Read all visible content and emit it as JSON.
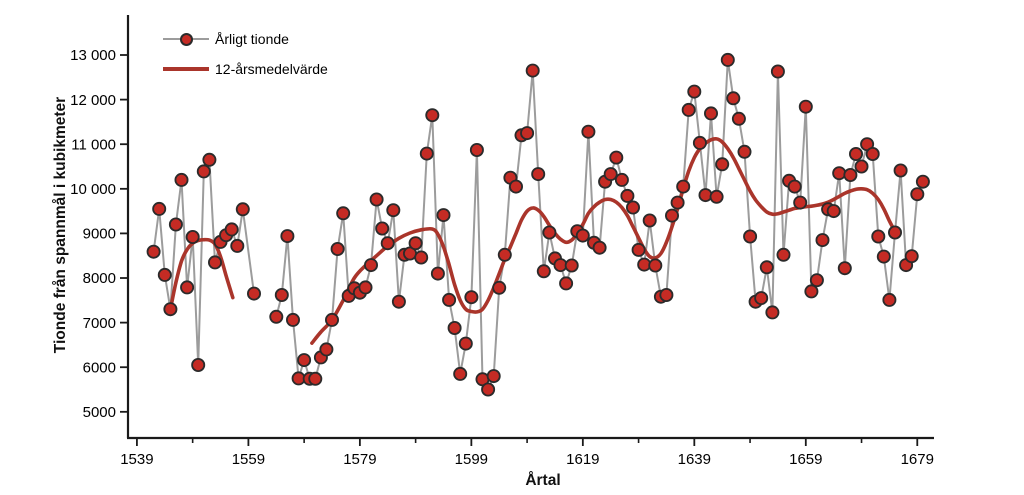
{
  "chart_data": {
    "type": "line",
    "title": "",
    "xlabel": "Årtal",
    "ylabel": "Tionde från spannmål i kubikmeter",
    "legend_position": "top-left-inside",
    "grid": false,
    "xlim": [
      1537.4,
      1682.0
    ],
    "ylim": [
      4413,
      13897
    ],
    "x_major_ticks": [
      {
        "v": 1539,
        "label": "1539"
      },
      {
        "v": 1559,
        "label": "1559"
      },
      {
        "v": 1579,
        "label": "1579"
      },
      {
        "v": 1599,
        "label": "1599"
      },
      {
        "v": 1619,
        "label": "1619"
      },
      {
        "v": 1639,
        "label": "1639"
      },
      {
        "v": 1659,
        "label": "1659"
      },
      {
        "v": 1679,
        "label": "1679"
      }
    ],
    "x_minor_ticks": [
      1549,
      1569,
      1589,
      1609,
      1629,
      1649,
      1669
    ],
    "y_ticks": [
      {
        "v": 5000,
        "label": "5000"
      },
      {
        "v": 6000,
        "label": "6000"
      },
      {
        "v": 7000,
        "label": "7000"
      },
      {
        "v": 8000,
        "label": "8000"
      },
      {
        "v": 9000,
        "label": "9000"
      },
      {
        "v": 10000,
        "label": "10 000"
      },
      {
        "v": 11000,
        "label": "11 000"
      },
      {
        "v": 12000,
        "label": "12 000"
      },
      {
        "v": 13000,
        "label": "13 000"
      }
    ],
    "series": [
      {
        "name": "Årligt tionde",
        "type": "scatter-line",
        "marker": "circle",
        "points": [
          [
            1542,
            8590
          ],
          [
            1543,
            9550
          ],
          [
            1544,
            8070
          ],
          [
            1545,
            7300
          ],
          [
            1546,
            9200
          ],
          [
            1547,
            10200
          ],
          [
            1548,
            7790
          ],
          [
            1549,
            8920
          ],
          [
            1550,
            6050
          ],
          [
            1551,
            10390
          ],
          [
            1552,
            10650
          ],
          [
            1553,
            8350
          ],
          [
            1554,
            8810
          ],
          [
            1555,
            8960
          ],
          [
            1556,
            9090
          ],
          [
            1557,
            8720
          ],
          [
            1558,
            9540
          ],
          [
            1560,
            7650
          ],
          [
            1564,
            7130
          ],
          [
            1565,
            7620
          ],
          [
            1566,
            8940
          ],
          [
            1567,
            7060
          ],
          [
            1568,
            5750
          ],
          [
            1569,
            6160
          ],
          [
            1570,
            5740
          ],
          [
            1571,
            5740
          ],
          [
            1572,
            6220
          ],
          [
            1573,
            6400
          ],
          [
            1574,
            7060
          ],
          [
            1575,
            8650
          ],
          [
            1576,
            9450
          ],
          [
            1577,
            7600
          ],
          [
            1578,
            7770
          ],
          [
            1579,
            7670
          ],
          [
            1580,
            7790
          ],
          [
            1581,
            8290
          ],
          [
            1582,
            9760
          ],
          [
            1583,
            9110
          ],
          [
            1584,
            8780
          ],
          [
            1585,
            9520
          ],
          [
            1586,
            7470
          ],
          [
            1587,
            8520
          ],
          [
            1588,
            8550
          ],
          [
            1589,
            8780
          ],
          [
            1590,
            8460
          ],
          [
            1591,
            10790
          ],
          [
            1592,
            11650
          ],
          [
            1593,
            8100
          ],
          [
            1594,
            9410
          ],
          [
            1595,
            7510
          ],
          [
            1596,
            6880
          ],
          [
            1597,
            5850
          ],
          [
            1598,
            6530
          ],
          [
            1599,
            7570
          ],
          [
            1600,
            10870
          ],
          [
            1601,
            5730
          ],
          [
            1602,
            5500
          ],
          [
            1603,
            5800
          ],
          [
            1604,
            7780
          ],
          [
            1605,
            8520
          ],
          [
            1606,
            10250
          ],
          [
            1607,
            10050
          ],
          [
            1608,
            11200
          ],
          [
            1609,
            11250
          ],
          [
            1610,
            12650
          ],
          [
            1611,
            10330
          ],
          [
            1612,
            8150
          ],
          [
            1613,
            9020
          ],
          [
            1614,
            8440
          ],
          [
            1615,
            8290
          ],
          [
            1616,
            7880
          ],
          [
            1617,
            8280
          ],
          [
            1618,
            9050
          ],
          [
            1619,
            8950
          ],
          [
            1620,
            11280
          ],
          [
            1621,
            8790
          ],
          [
            1622,
            8680
          ],
          [
            1623,
            10160
          ],
          [
            1624,
            10330
          ],
          [
            1625,
            10700
          ],
          [
            1626,
            10200
          ],
          [
            1627,
            9840
          ],
          [
            1628,
            9580
          ],
          [
            1629,
            8630
          ],
          [
            1630,
            8300
          ],
          [
            1631,
            9290
          ],
          [
            1632,
            8280
          ],
          [
            1633,
            7580
          ],
          [
            1634,
            7620
          ],
          [
            1635,
            9400
          ],
          [
            1636,
            9690
          ],
          [
            1637,
            10050
          ],
          [
            1638,
            11770
          ],
          [
            1639,
            12180
          ],
          [
            1640,
            11030
          ],
          [
            1641,
            9860
          ],
          [
            1642,
            11690
          ],
          [
            1643,
            9820
          ],
          [
            1644,
            10550
          ],
          [
            1645,
            12890
          ],
          [
            1646,
            12030
          ],
          [
            1647,
            11570
          ],
          [
            1648,
            10830
          ],
          [
            1649,
            8930
          ],
          [
            1650,
            7470
          ],
          [
            1651,
            7550
          ],
          [
            1652,
            8240
          ],
          [
            1653,
            7230
          ],
          [
            1654,
            12630
          ],
          [
            1655,
            8520
          ],
          [
            1656,
            10180
          ],
          [
            1657,
            10050
          ],
          [
            1658,
            9690
          ],
          [
            1659,
            11840
          ],
          [
            1660,
            7700
          ],
          [
            1661,
            7950
          ],
          [
            1662,
            8850
          ],
          [
            1663,
            9540
          ],
          [
            1664,
            9500
          ],
          [
            1665,
            10350
          ],
          [
            1666,
            8220
          ],
          [
            1667,
            10310
          ],
          [
            1668,
            10780
          ],
          [
            1669,
            10500
          ],
          [
            1670,
            11000
          ],
          [
            1671,
            10780
          ],
          [
            1672,
            8930
          ],
          [
            1673,
            8480
          ],
          [
            1674,
            7510
          ],
          [
            1675,
            9020
          ],
          [
            1676,
            10410
          ],
          [
            1677,
            8290
          ],
          [
            1678,
            8490
          ],
          [
            1679,
            9880
          ],
          [
            1680,
            10160
          ]
        ]
      },
      {
        "name": "12-årsmedelvärde",
        "type": "smooth-line",
        "segments": [
          [
            [
              1545.2,
              7420
            ],
            [
              1546,
              7900
            ],
            [
              1547,
              8380
            ],
            [
              1548,
              8640
            ],
            [
              1549,
              8780
            ],
            [
              1550,
              8840
            ],
            [
              1551,
              8860
            ],
            [
              1552,
              8850
            ],
            [
              1553,
              8760
            ],
            [
              1554,
              8480
            ],
            [
              1555,
              8050
            ],
            [
              1556.2,
              7560
            ]
          ],
          [
            [
              1570.4,
              6540
            ],
            [
              1572,
              6790
            ],
            [
              1574,
              7060
            ],
            [
              1576,
              7500
            ],
            [
              1578,
              8000
            ],
            [
              1580,
              8280
            ],
            [
              1582,
              8500
            ],
            [
              1584,
              8720
            ],
            [
              1586,
              8890
            ],
            [
              1588,
              9010
            ],
            [
              1590,
              9080
            ],
            [
              1592,
              9100
            ],
            [
              1593,
              8980
            ],
            [
              1594,
              8700
            ],
            [
              1595,
              8300
            ],
            [
              1596,
              7850
            ],
            [
              1597,
              7500
            ],
            [
              1598,
              7300
            ],
            [
              1599,
              7250
            ],
            [
              1600,
              7240
            ],
            [
              1601,
              7300
            ],
            [
              1602,
              7500
            ],
            [
              1603,
              7780
            ],
            [
              1604,
              8100
            ],
            [
              1605,
              8420
            ],
            [
              1606,
              8700
            ],
            [
              1607,
              9000
            ],
            [
              1608,
              9300
            ],
            [
              1609,
              9500
            ],
            [
              1610,
              9570
            ],
            [
              1611,
              9520
            ],
            [
              1612,
              9380
            ],
            [
              1613,
              9180
            ],
            [
              1614,
              9000
            ],
            [
              1615,
              8870
            ],
            [
              1616,
              8800
            ],
            [
              1617,
              8850
            ],
            [
              1618,
              9000
            ],
            [
              1619,
              9200
            ],
            [
              1620,
              9450
            ],
            [
              1621,
              9600
            ],
            [
              1622,
              9700
            ],
            [
              1623,
              9760
            ],
            [
              1624,
              9760
            ],
            [
              1625,
              9700
            ],
            [
              1626,
              9580
            ],
            [
              1627,
              9400
            ],
            [
              1628,
              9150
            ],
            [
              1629,
              8900
            ],
            [
              1630,
              8650
            ],
            [
              1631,
              8480
            ],
            [
              1632,
              8450
            ],
            [
              1633,
              8550
            ],
            [
              1634,
              8800
            ],
            [
              1635,
              9150
            ],
            [
              1636,
              9550
            ],
            [
              1637,
              10000
            ],
            [
              1638,
              10400
            ],
            [
              1639,
              10700
            ],
            [
              1640,
              10900
            ],
            [
              1641,
              11020
            ],
            [
              1642,
              11100
            ],
            [
              1643,
              11120
            ],
            [
              1644,
              11050
            ],
            [
              1645,
              10900
            ],
            [
              1646,
              10700
            ],
            [
              1647,
              10450
            ],
            [
              1648,
              10200
            ],
            [
              1649,
              9950
            ],
            [
              1650,
              9750
            ],
            [
              1651,
              9600
            ],
            [
              1652,
              9480
            ],
            [
              1653,
              9430
            ],
            [
              1654,
              9440
            ],
            [
              1655,
              9480
            ],
            [
              1656,
              9520
            ],
            [
              1657,
              9560
            ],
            [
              1658,
              9580
            ],
            [
              1659,
              9600
            ],
            [
              1660,
              9610
            ],
            [
              1661,
              9630
            ],
            [
              1662,
              9660
            ],
            [
              1663,
              9700
            ],
            [
              1664,
              9760
            ],
            [
              1665,
              9830
            ],
            [
              1666,
              9900
            ],
            [
              1667,
              9950
            ],
            [
              1668,
              9990
            ],
            [
              1669,
              10000
            ],
            [
              1670,
              9980
            ],
            [
              1671,
              9900
            ],
            [
              1672,
              9760
            ],
            [
              1673,
              9550
            ],
            [
              1674,
              9280
            ],
            [
              1674.8,
              9090
            ]
          ]
        ]
      }
    ],
    "colors": {
      "dot_fill": "#c52b24",
      "dot_stroke": "#2b2b2b",
      "annual_line": "#9c9c9c",
      "mean_line": "#aa352b",
      "axis": "#1a1a1a",
      "text": "#000000",
      "background": "#ffffff"
    },
    "legend": {
      "annual_label": "Årligt tionde",
      "mean_label": "12-årsmedelvärde"
    }
  }
}
